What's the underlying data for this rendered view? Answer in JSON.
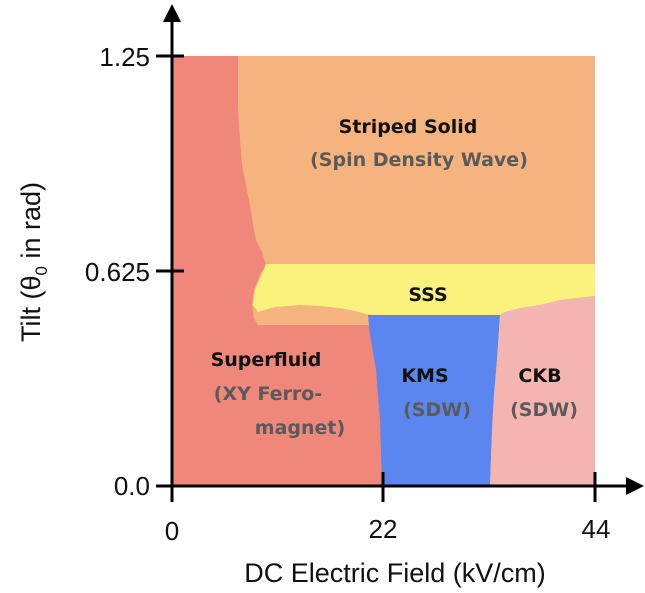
{
  "chart_data": {
    "type": "phase-diagram",
    "xlabel": "DC Electric Field (kV/cm)",
    "ylabel_prefix": "Tilt (θ",
    "ylabel_sub": "0",
    "ylabel_suffix": " in rad)",
    "xlim": [
      0,
      44
    ],
    "ylim": [
      0.0,
      1.25
    ],
    "x_ticks": [
      "0",
      "22",
      "44"
    ],
    "y_ticks": [
      "0.0",
      "0.625",
      "1.25"
    ],
    "regions": [
      {
        "name": "Striped Solid",
        "sub": "(Spin Density Wave)",
        "color": "#f5b47e"
      },
      {
        "name": "SSS",
        "sub": "",
        "color": "#fbf27e"
      },
      {
        "name": "Superfluid",
        "sub_lines": [
          "(XY Ferro-",
          "magnet)"
        ],
        "color": "#f0877b"
      },
      {
        "name": "KMS",
        "sub": "(SDW)",
        "color": "#5b86f0"
      },
      {
        "name": "CKB",
        "sub": "(SDW)",
        "color": "#f4b5b0"
      }
    ]
  }
}
